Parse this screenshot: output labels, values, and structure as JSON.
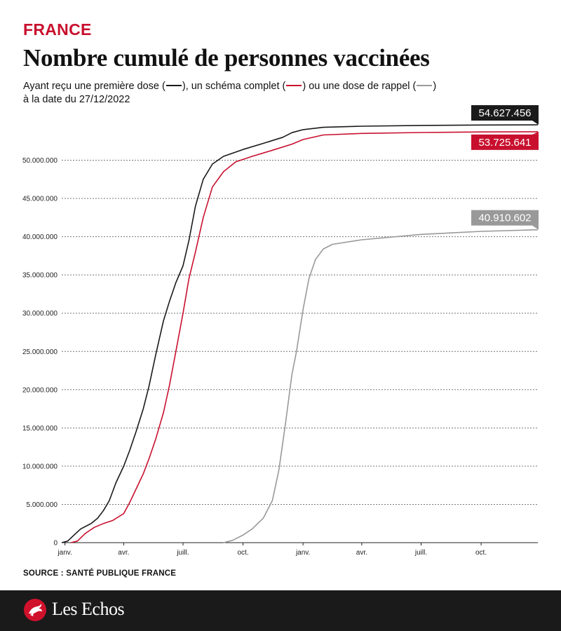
{
  "header": {
    "kicker": "FRANCE",
    "title": "Nombre cumulé de personnes vaccinées",
    "subtitle_parts": [
      "Ayant reçu une première dose (",
      "), un schéma complet (",
      ") ou une dose de rappel (",
      ")"
    ],
    "subtitle_line2": "à la date du 27/12/2022"
  },
  "footer": {
    "source": "SOURCE : SANTÉ PUBLIQUE FRANCE",
    "brand": "Les Echos",
    "brand_color": "#d0112b"
  },
  "chart_data": {
    "type": "line",
    "title": "Nombre cumulé de personnes vaccinées",
    "xlabel": "",
    "ylabel": "",
    "ylim": [
      0,
      55000000
    ],
    "xlim": [
      "2020-12-27",
      "2022-12-27"
    ],
    "y_ticks": [
      0,
      5000000,
      10000000,
      15000000,
      20000000,
      25000000,
      30000000,
      35000000,
      40000000,
      45000000,
      50000000
    ],
    "y_tick_labels": [
      "0",
      "5.000.000",
      "10.000.000",
      "15.000.000",
      "20.000.000",
      "25.000.000",
      "30.000.000",
      "35.000.000",
      "40.000.000",
      "45.000.000",
      "50.000.000"
    ],
    "x_ticks": [
      "2021-01-01",
      "2021-04-01",
      "2021-07-01",
      "2021-10-01",
      "2022-01-01",
      "2022-04-01",
      "2022-07-01",
      "2022-10-01"
    ],
    "x_tick_labels": [
      "janv.",
      "avr.",
      "juill.",
      "oct.",
      "janv.",
      "avr.",
      "juill.",
      "oct."
    ],
    "grid": "horizontal dotted",
    "series": [
      {
        "key": "premiere_dose",
        "color": "#1a1a1a",
        "end_label": "54.627.456",
        "points": [
          [
            "2020-12-27",
            0
          ],
          [
            "2021-01-05",
            200000
          ],
          [
            "2021-01-15",
            1000000
          ],
          [
            "2021-01-25",
            1800000
          ],
          [
            "2021-02-10",
            2500000
          ],
          [
            "2021-02-20",
            3200000
          ],
          [
            "2021-03-01",
            4200000
          ],
          [
            "2021-03-10",
            5500000
          ],
          [
            "2021-03-20",
            7800000
          ],
          [
            "2021-04-01",
            10000000
          ],
          [
            "2021-04-10",
            12000000
          ],
          [
            "2021-04-20",
            14500000
          ],
          [
            "2021-05-01",
            17500000
          ],
          [
            "2021-05-10",
            20500000
          ],
          [
            "2021-05-20",
            24500000
          ],
          [
            "2021-06-01",
            29000000
          ],
          [
            "2021-06-10",
            31500000
          ],
          [
            "2021-06-20",
            34000000
          ],
          [
            "2021-07-01",
            36200000
          ],
          [
            "2021-07-10",
            39500000
          ],
          [
            "2021-07-20",
            44000000
          ],
          [
            "2021-08-01",
            47500000
          ],
          [
            "2021-08-15",
            49500000
          ],
          [
            "2021-09-01",
            50500000
          ],
          [
            "2021-10-01",
            51400000
          ],
          [
            "2021-11-01",
            52200000
          ],
          [
            "2021-12-01",
            53000000
          ],
          [
            "2021-12-15",
            53600000
          ],
          [
            "2022-01-01",
            54000000
          ],
          [
            "2022-02-01",
            54300000
          ],
          [
            "2022-04-01",
            54450000
          ],
          [
            "2022-07-01",
            54550000
          ],
          [
            "2022-10-01",
            54600000
          ],
          [
            "2022-12-27",
            54627456
          ]
        ]
      },
      {
        "key": "schema_complet",
        "color": "#c8102e",
        "end_label": "53.725.641",
        "points": [
          [
            "2021-01-10",
            0
          ],
          [
            "2021-01-20",
            200000
          ],
          [
            "2021-02-01",
            1200000
          ],
          [
            "2021-02-15",
            2000000
          ],
          [
            "2021-03-01",
            2500000
          ],
          [
            "2021-03-15",
            2900000
          ],
          [
            "2021-04-01",
            3800000
          ],
          [
            "2021-04-10",
            5200000
          ],
          [
            "2021-04-20",
            7000000
          ],
          [
            "2021-05-01",
            9000000
          ],
          [
            "2021-05-10",
            11000000
          ],
          [
            "2021-05-20",
            13500000
          ],
          [
            "2021-06-01",
            17000000
          ],
          [
            "2021-06-10",
            20500000
          ],
          [
            "2021-06-20",
            25000000
          ],
          [
            "2021-07-01",
            30000000
          ],
          [
            "2021-07-10",
            34500000
          ],
          [
            "2021-07-20",
            38000000
          ],
          [
            "2021-08-01",
            42500000
          ],
          [
            "2021-08-15",
            46500000
          ],
          [
            "2021-09-01",
            48500000
          ],
          [
            "2021-09-20",
            49800000
          ],
          [
            "2021-10-15",
            50500000
          ],
          [
            "2021-11-15",
            51300000
          ],
          [
            "2021-12-15",
            52100000
          ],
          [
            "2022-01-01",
            52700000
          ],
          [
            "2022-02-01",
            53300000
          ],
          [
            "2022-04-01",
            53500000
          ],
          [
            "2022-07-01",
            53620000
          ],
          [
            "2022-10-01",
            53690000
          ],
          [
            "2022-12-27",
            53725641
          ]
        ]
      },
      {
        "key": "rappel",
        "color": "#999999",
        "end_label": "40.910.602",
        "points": [
          [
            "2021-09-01",
            0
          ],
          [
            "2021-09-15",
            300000
          ],
          [
            "2021-10-01",
            1000000
          ],
          [
            "2021-10-15",
            1800000
          ],
          [
            "2021-11-01",
            3200000
          ],
          [
            "2021-11-15",
            5500000
          ],
          [
            "2021-11-25",
            9500000
          ],
          [
            "2021-12-05",
            15500000
          ],
          [
            "2021-12-15",
            22000000
          ],
          [
            "2021-12-22",
            25000000
          ],
          [
            "2022-01-01",
            30500000
          ],
          [
            "2022-01-10",
            34500000
          ],
          [
            "2022-01-20",
            37000000
          ],
          [
            "2022-02-01",
            38400000
          ],
          [
            "2022-02-15",
            39000000
          ],
          [
            "2022-04-01",
            39600000
          ],
          [
            "2022-07-01",
            40300000
          ],
          [
            "2022-10-01",
            40700000
          ],
          [
            "2022-12-27",
            40910602
          ]
        ]
      }
    ]
  }
}
